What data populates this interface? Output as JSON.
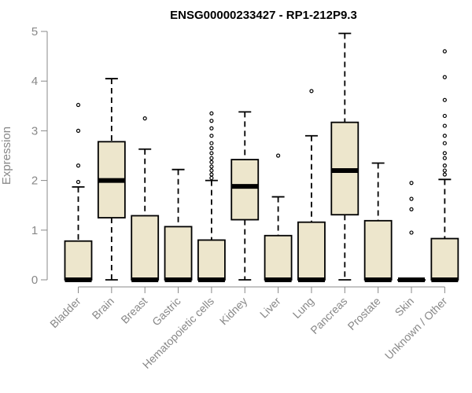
{
  "chart_data": {
    "type": "boxplot",
    "title": "ENSG00000233427 - RP1-212P9.3",
    "xlabel": "",
    "ylabel": "Expression",
    "ylim": [
      0,
      5
    ],
    "yticks": [
      0,
      1,
      2,
      3,
      4,
      5
    ],
    "grid": false,
    "colors": {
      "box_fill": "#ede6cc",
      "stroke": "#000000",
      "axis": "#888888"
    },
    "categories": [
      "Bladder",
      "Brain",
      "Breast",
      "Gastric",
      "Hematopoietic cells",
      "Kidney",
      "Liver",
      "Lung",
      "Pancreas",
      "Prostate",
      "Skin",
      "Unknown / Other"
    ],
    "boxes": [
      {
        "category": "Bladder",
        "min": 0,
        "q1": 0,
        "median": 0,
        "q3": 0.78,
        "max": 1.87,
        "outliers": [
          1.97,
          2.3,
          3.0,
          3.52
        ]
      },
      {
        "category": "Brain",
        "min": 0,
        "q1": 1.25,
        "median": 2.0,
        "q3": 2.78,
        "max": 4.05,
        "outliers": []
      },
      {
        "category": "Breast",
        "min": 0,
        "q1": 0,
        "median": 0,
        "q3": 1.29,
        "max": 2.63,
        "outliers": [
          3.25
        ]
      },
      {
        "category": "Gastric",
        "min": 0,
        "q1": 0,
        "median": 0,
        "q3": 1.07,
        "max": 2.22,
        "outliers": []
      },
      {
        "category": "Hematopoietic cells",
        "min": 0,
        "q1": 0,
        "median": 0,
        "q3": 0.8,
        "max": 2.0,
        "outliers": [
          2.05,
          2.12,
          2.2,
          2.28,
          2.37,
          2.45,
          2.55,
          2.65,
          2.75,
          2.9,
          3.05,
          3.2,
          3.35
        ]
      },
      {
        "category": "Kidney",
        "min": 0,
        "q1": 1.21,
        "median": 1.88,
        "q3": 2.42,
        "max": 3.38,
        "outliers": []
      },
      {
        "category": "Liver",
        "min": 0,
        "q1": 0,
        "median": 0,
        "q3": 0.89,
        "max": 1.67,
        "outliers": [
          2.5
        ]
      },
      {
        "category": "Lung",
        "min": 0,
        "q1": 0,
        "median": 0,
        "q3": 1.16,
        "max": 2.9,
        "outliers": [
          3.8
        ]
      },
      {
        "category": "Pancreas",
        "min": 0,
        "q1": 1.31,
        "median": 2.2,
        "q3": 3.17,
        "max": 4.96,
        "outliers": []
      },
      {
        "category": "Prostate",
        "min": 0,
        "q1": 0,
        "median": 0,
        "q3": 1.19,
        "max": 2.35,
        "outliers": []
      },
      {
        "category": "Skin",
        "min": 0,
        "q1": 0,
        "median": 0,
        "q3": 0,
        "max": 0,
        "outliers": [
          0.95,
          1.42,
          1.63,
          1.95
        ]
      },
      {
        "category": "Unknown / Other",
        "min": 0,
        "q1": 0,
        "median": 0,
        "q3": 0.83,
        "max": 2.02,
        "outliers": [
          2.12,
          2.2,
          2.3,
          2.45,
          2.55,
          2.75,
          2.9,
          3.1,
          3.3,
          3.62,
          4.08,
          4.6
        ]
      }
    ]
  }
}
